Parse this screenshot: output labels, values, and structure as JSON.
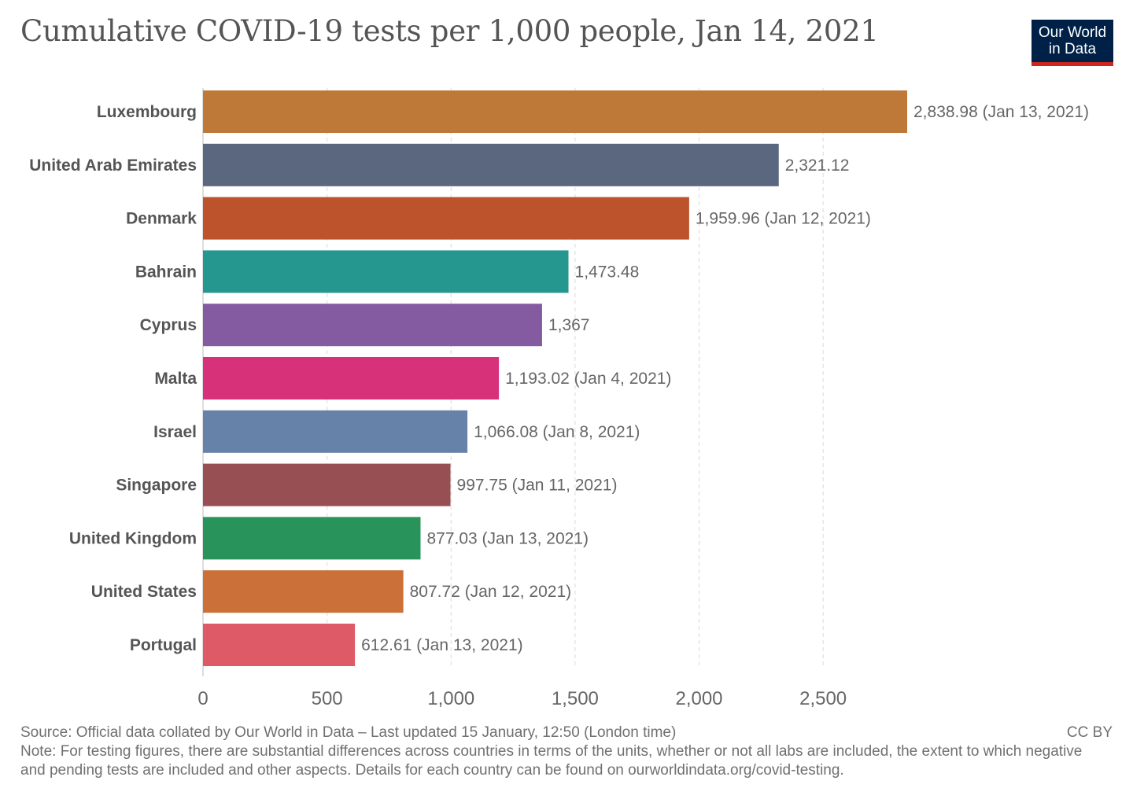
{
  "title": "Cumulative COVID-19 tests per 1,000 people, Jan 14, 2021",
  "logo": {
    "line1": "Our World",
    "line2": "in Data"
  },
  "footer": {
    "source": "Source: Official data collated by Our World in Data – Last updated 15 January, 12:50 (London time)",
    "note": "Note: For testing figures, there are substantial differences across countries in terms of the units, whether or not all labs are included, the extent to which negative and pending tests are included and other aspects. Details for each country can be found on ourworldindata.org/covid-testing.",
    "license": "CC BY"
  },
  "chart_data": {
    "type": "bar",
    "orientation": "horizontal",
    "title": "Cumulative COVID-19 tests per 1,000 people, Jan 14, 2021",
    "categories": [
      "Luxembourg",
      "United Arab Emirates",
      "Denmark",
      "Bahrain",
      "Cyprus",
      "Malta",
      "Israel",
      "Singapore",
      "United Kingdom",
      "United States",
      "Portugal"
    ],
    "values": [
      2838.98,
      2321.12,
      1959.96,
      1473.48,
      1367,
      1193.02,
      1066.08,
      997.75,
      877.03,
      807.72,
      612.61
    ],
    "value_labels": [
      "2,838.98 (Jan 13, 2021)",
      "2,321.12",
      "1,959.96 (Jan 12, 2021)",
      "1,473.48",
      "1,367",
      "1,193.02 (Jan 4, 2021)",
      "1,066.08 (Jan 8, 2021)",
      "997.75 (Jan 11, 2021)",
      "877.03 (Jan 13, 2021)",
      "807.72 (Jan 12, 2021)",
      "612.61 (Jan 13, 2021)"
    ],
    "colors": [
      "#be7939",
      "#5a677f",
      "#bd532d",
      "#26978f",
      "#845ba0",
      "#d7317a",
      "#6782a9",
      "#974f53",
      "#28935a",
      "#cb7038",
      "#dd5a66"
    ],
    "xlim": [
      0,
      2838.98
    ],
    "xticks": [
      0,
      500,
      1000,
      1500,
      2000,
      2500
    ],
    "xtick_labels": [
      "0",
      "500",
      "1,000",
      "1,500",
      "2,000",
      "2,500"
    ],
    "grid": "vertical dashed",
    "legend": "none"
  }
}
